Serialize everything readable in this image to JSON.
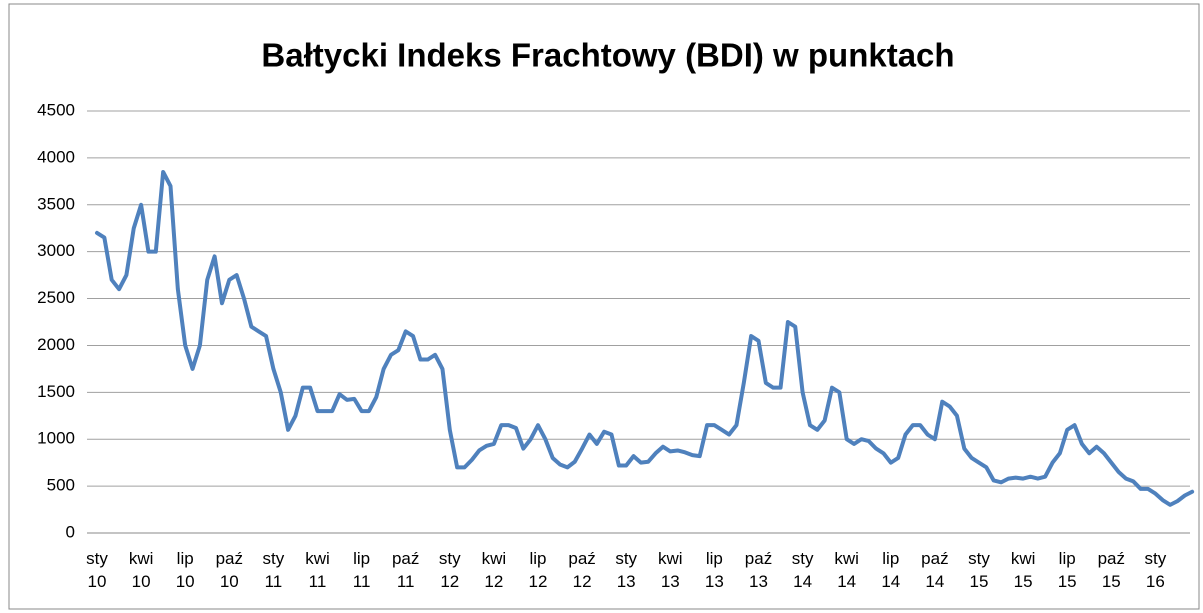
{
  "chart_data": {
    "type": "line",
    "title": "Bałtycki Indeks Frachtowy (BDI) w punktach",
    "categories": [
      "sty 10",
      null,
      null,
      null,
      null,
      null,
      "kwi 10",
      null,
      null,
      null,
      null,
      null,
      "lip 10",
      null,
      null,
      null,
      null,
      null,
      "paź 10",
      null,
      null,
      null,
      null,
      null,
      "sty 11",
      null,
      null,
      null,
      null,
      null,
      "kwi 11",
      null,
      null,
      null,
      null,
      null,
      "lip 11",
      null,
      null,
      null,
      null,
      null,
      "paź 11",
      null,
      null,
      null,
      null,
      null,
      "sty 12",
      null,
      null,
      null,
      null,
      null,
      "kwi 12",
      null,
      null,
      null,
      null,
      null,
      "lip 12",
      null,
      null,
      null,
      null,
      null,
      "paź 12",
      null,
      null,
      null,
      null,
      null,
      "sty 13",
      null,
      null,
      null,
      null,
      null,
      "kwi 13",
      null,
      null,
      null,
      null,
      null,
      "lip 13",
      null,
      null,
      null,
      null,
      null,
      "paź 13",
      null,
      null,
      null,
      null,
      null,
      "sty 14",
      null,
      null,
      null,
      null,
      null,
      "kwi 14",
      null,
      null,
      null,
      null,
      null,
      "lip 14",
      null,
      null,
      null,
      null,
      null,
      "paź 14",
      null,
      null,
      null,
      null,
      null,
      "sty 15",
      null,
      null,
      null,
      null,
      null,
      "kwi 15",
      null,
      null,
      null,
      null,
      null,
      "lip 15",
      null,
      null,
      null,
      null,
      null,
      "paź 15",
      null,
      null,
      null,
      null,
      null,
      "sty 16",
      null,
      null,
      null,
      null,
      null
    ],
    "series": [
      {
        "name": "BDI",
        "color": "#4f81bd",
        "values": [
          3200,
          3150,
          2700,
          2600,
          2750,
          3250,
          3500,
          3000,
          3000,
          3850,
          3700,
          2600,
          2000,
          1750,
          2000,
          2700,
          2950,
          2450,
          2700,
          2750,
          2500,
          2200,
          2150,
          2100,
          1750,
          1500,
          1100,
          1250,
          1550,
          1550,
          1300,
          1300,
          1300,
          1480,
          1420,
          1430,
          1300,
          1300,
          1450,
          1750,
          1900,
          1950,
          2150,
          2100,
          1850,
          1850,
          1900,
          1750,
          1100,
          700,
          700,
          780,
          880,
          930,
          950,
          1150,
          1150,
          1120,
          900,
          1000,
          1150,
          1000,
          800,
          730,
          700,
          760,
          900,
          1050,
          950,
          1080,
          1050,
          720,
          720,
          820,
          750,
          760,
          850,
          920,
          870,
          880,
          860,
          830,
          820,
          1150,
          1150,
          1100,
          1050,
          1150,
          1600,
          2100,
          2050,
          1600,
          1550,
          1550,
          2250,
          2200,
          1500,
          1150,
          1100,
          1200,
          1550,
          1500,
          1000,
          950,
          1000,
          980,
          900,
          850,
          750,
          800,
          1050,
          1150,
          1150,
          1050,
          1000,
          1400,
          1350,
          1250,
          900,
          800,
          750,
          700,
          560,
          540,
          580,
          590,
          580,
          600,
          580,
          600,
          750,
          850,
          1100,
          1150,
          950,
          850,
          920,
          850,
          750,
          650,
          580,
          550,
          470,
          470,
          420,
          350,
          300,
          340,
          400,
          440
        ]
      }
    ],
    "ylim": [
      0,
      4500
    ],
    "yticks": [
      0,
      500,
      1000,
      1500,
      2000,
      2500,
      3000,
      3500,
      4000,
      4500
    ],
    "grid": true
  }
}
